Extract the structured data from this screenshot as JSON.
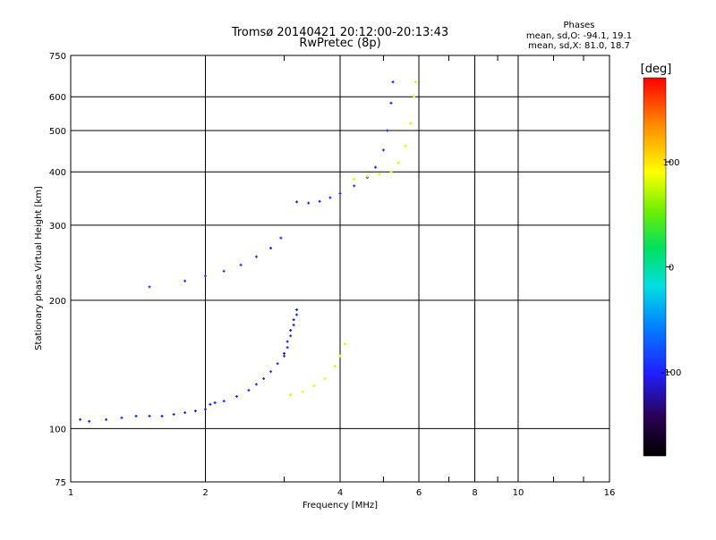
{
  "chart_data": {
    "type": "scatter",
    "title": "Tromsø 20140421 20:12:00-20:13:43",
    "subtitle": "RwPretec (8p)",
    "phases": {
      "heading": "Phases",
      "line_o": "mean, sd,O: -94.1, 19.1",
      "line_x": "mean, sd,X: 81.0, 18.7"
    },
    "xlabel": "Frequency [MHz]",
    "ylabel": "Stationary phase Virtual Height [km]",
    "x_scale": "log",
    "y_scale": "log",
    "xlim": [
      1,
      16
    ],
    "ylim": [
      75,
      750
    ],
    "x_ticks": [
      1,
      2,
      4,
      6,
      8,
      10,
      16
    ],
    "x_tick_labels": [
      "1",
      "2",
      "4",
      "6",
      "8",
      "10",
      "16"
    ],
    "y_ticks": [
      75,
      100,
      200,
      300,
      400,
      500,
      600,
      750
    ],
    "y_tick_labels": [
      "75",
      "100",
      "200",
      "300",
      "400",
      "500",
      "600",
      "750"
    ],
    "grid": true,
    "colorbar": {
      "label": "[deg]",
      "range": [
        -180,
        180
      ],
      "ticks": [
        100,
        0,
        -100
      ],
      "tick_labels": [
        "100",
        "0",
        "-100"
      ]
    },
    "traces": [
      {
        "name_hint": "O-mode E/F1 low trace",
        "phase_deg": -105,
        "points": [
          [
            1.05,
            105
          ],
          [
            1.1,
            104
          ],
          [
            1.2,
            105
          ],
          [
            1.3,
            106
          ],
          [
            1.4,
            107
          ],
          [
            1.5,
            107
          ],
          [
            1.6,
            107
          ],
          [
            1.7,
            108
          ],
          [
            1.8,
            109
          ],
          [
            1.9,
            110
          ],
          [
            2.0,
            111
          ],
          [
            2.05,
            114
          ],
          [
            2.1,
            115
          ]
        ]
      },
      {
        "name_hint": "O-mode trace mid",
        "phase_deg": -95,
        "points": [
          [
            2.1,
            115
          ],
          [
            2.2,
            116
          ],
          [
            2.35,
            119
          ],
          [
            2.5,
            123
          ],
          [
            2.6,
            127
          ],
          [
            2.7,
            131
          ],
          [
            2.8,
            136
          ],
          [
            2.9,
            142
          ],
          [
            3.0,
            148
          ],
          [
            3.05,
            155
          ],
          [
            3.1,
            165
          ],
          [
            3.15,
            175
          ],
          [
            3.2,
            185
          ]
        ]
      },
      {
        "name_hint": "O-mode F1 cusp",
        "phase_deg": -115,
        "points": [
          [
            3.0,
            150
          ],
          [
            3.05,
            160
          ],
          [
            3.1,
            170
          ],
          [
            3.15,
            180
          ],
          [
            3.2,
            190
          ]
        ]
      },
      {
        "name_hint": "X-mode low trace",
        "phase_deg": 80,
        "points": [
          [
            3.1,
            120
          ],
          [
            3.3,
            122
          ],
          [
            3.5,
            126
          ],
          [
            3.7,
            131
          ],
          [
            3.9,
            140
          ],
          [
            4.0,
            148
          ],
          [
            4.1,
            158
          ]
        ]
      },
      {
        "name_hint": "O-mode F trace",
        "phase_deg": -95,
        "points": [
          [
            1.5,
            215
          ],
          [
            1.8,
            222
          ],
          [
            2.0,
            228
          ],
          [
            2.2,
            234
          ],
          [
            2.4,
            242
          ],
          [
            2.6,
            253
          ],
          [
            2.8,
            265
          ],
          [
            2.95,
            280
          ]
        ]
      },
      {
        "name_hint": "O-mode F2 trace",
        "phase_deg": -105,
        "points": [
          [
            3.2,
            340
          ],
          [
            3.4,
            338
          ],
          [
            3.6,
            341
          ],
          [
            3.8,
            348
          ],
          [
            4.0,
            356
          ],
          [
            4.3,
            371
          ],
          [
            4.6,
            388
          ],
          [
            4.8,
            410
          ],
          [
            5.0,
            450
          ],
          [
            5.1,
            500
          ],
          [
            5.2,
            580
          ],
          [
            5.25,
            650
          ]
        ]
      },
      {
        "name_hint": "X-mode F2 trace",
        "phase_deg": 80,
        "points": [
          [
            4.3,
            385
          ],
          [
            4.6,
            390
          ],
          [
            4.9,
            395
          ],
          [
            5.2,
            400
          ],
          [
            5.4,
            420
          ],
          [
            5.6,
            460
          ],
          [
            5.75,
            520
          ],
          [
            5.85,
            600
          ],
          [
            5.9,
            650
          ]
        ]
      }
    ]
  }
}
